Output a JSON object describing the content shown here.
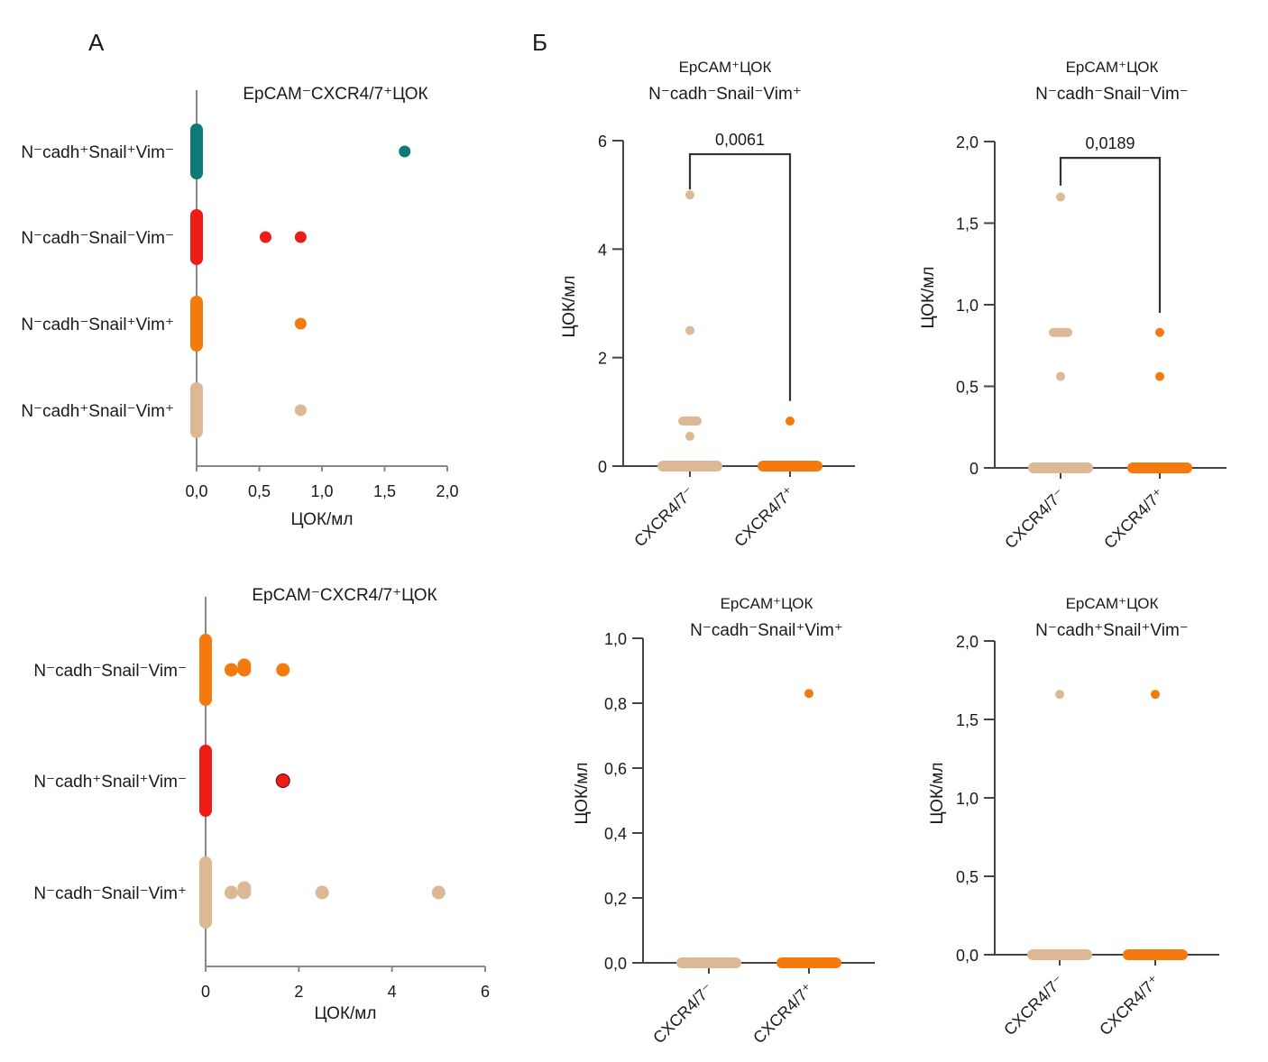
{
  "panel_letters": {
    "a": "А",
    "b": "Б"
  },
  "colors": {
    "teal": "#0e7a78",
    "red": "#ee1c16",
    "orange": "#f47a0e",
    "beige": "#dcb895",
    "axis": "#444444"
  },
  "chart_data": [
    {
      "id": "A-top",
      "type": "scatter",
      "orientation": "horizontal",
      "title": "EpCAM⁻CXCR4/7⁺ЦОК",
      "xlabel": "ЦОК/мл",
      "ylabel": "",
      "xlim": [
        0,
        2.0
      ],
      "xticks": [
        0,
        0.5,
        1.0,
        1.5,
        2.0
      ],
      "xtick_labels": [
        "0,0",
        "0,5",
        "1,0",
        "1,5",
        "2,0"
      ],
      "grid": false,
      "categories": [
        {
          "label": "N⁻cadh⁺Snail⁺Vim⁻",
          "color": "teal",
          "zero_cluster": true,
          "points": [
            1.66
          ]
        },
        {
          "label": "N⁻cadh⁻Snail⁻Vim⁻",
          "color": "red",
          "zero_cluster": true,
          "points": [
            0.55,
            0.83
          ]
        },
        {
          "label": "N⁻cadh⁻Snail⁺Vim⁺",
          "color": "orange",
          "zero_cluster": true,
          "points": [
            0.83
          ]
        },
        {
          "label": "N⁻cadh⁺Snail⁻Vim⁺",
          "color": "beige",
          "zero_cluster": true,
          "points": [
            0.83
          ]
        }
      ]
    },
    {
      "id": "A-bottom",
      "type": "scatter",
      "orientation": "horizontal",
      "title": "EpCAM⁻CXCR4/7⁺ЦОК",
      "xlabel": "ЦОК/мл",
      "ylabel": "",
      "xlim": [
        0,
        6
      ],
      "xticks": [
        0,
        2,
        4,
        6
      ],
      "xtick_labels": [
        "0",
        "2",
        "4",
        "6"
      ],
      "grid": false,
      "categories": [
        {
          "label": "N⁻cadh⁻Snail⁻Vim⁻",
          "color": "orange",
          "zero_cluster": true,
          "points": [
            0.55,
            0.83,
            0.83,
            1.66
          ]
        },
        {
          "label": "N⁻cadh⁺Snail⁺Vim⁻",
          "color": "red",
          "zero_cluster": true,
          "points": [
            1.66
          ]
        },
        {
          "label": "N⁻cadh⁻Snail⁻Vim⁺",
          "color": "beige",
          "zero_cluster": true,
          "points": [
            0.55,
            0.83,
            0.83,
            2.5,
            5.0
          ]
        }
      ]
    },
    {
      "id": "B-top-left",
      "type": "scatter",
      "orientation": "vertical",
      "title": [
        "EpCAM⁺ЦОК",
        "N⁻cadh⁻Snail⁻Vim⁺"
      ],
      "ylabel": "ЦОК/мл",
      "xlabel": "",
      "ylim": [
        0,
        6
      ],
      "yticks": [
        0,
        2,
        4,
        6
      ],
      "ytick_labels": [
        "0",
        "2",
        "4",
        "6"
      ],
      "grid": false,
      "categories": [
        {
          "label": "CXCR4/7⁻",
          "color": "beige",
          "zero_cluster": true,
          "points": [
            0.55,
            0.83,
            0.83,
            0.83,
            2.5,
            5.0
          ]
        },
        {
          "label": "CXCR4/7⁺",
          "color": "orange",
          "zero_cluster": true,
          "points": [
            0.83
          ]
        }
      ],
      "significance": {
        "label": "0,0061",
        "y_top": 5.75,
        "left_end": 5.1,
        "right_end": 1.2
      }
    },
    {
      "id": "B-top-right",
      "type": "scatter",
      "orientation": "vertical",
      "title": [
        "EpCAM⁺ЦОК",
        "N⁻cadh⁻Snail⁻Vim⁻"
      ],
      "ylabel": "ЦОК/мл",
      "xlabel": "",
      "ylim": [
        0,
        2.0
      ],
      "yticks": [
        0,
        0.5,
        1.0,
        1.5,
        2.0
      ],
      "ytick_labels": [
        "0",
        "0,5",
        "1,0",
        "1,5",
        "2,0"
      ],
      "grid": false,
      "categories": [
        {
          "label": "CXCR4/7⁻",
          "color": "beige",
          "zero_cluster": true,
          "points": [
            0.56,
            0.83,
            0.83,
            0.83,
            1.66
          ]
        },
        {
          "label": "CXCR4/7⁺",
          "color": "orange",
          "zero_cluster": true,
          "points": [
            0.56,
            0.83
          ]
        }
      ],
      "significance": {
        "label": "0,0189",
        "y_top": 1.9,
        "left_end": 1.73,
        "right_end": 0.95
      }
    },
    {
      "id": "B-bottom-left",
      "type": "scatter",
      "orientation": "vertical",
      "title": [
        "EpCAM⁺ЦОК",
        "N⁻cadh⁻Snail⁺Vim⁺"
      ],
      "ylabel": "ЦОК/мл",
      "xlabel": "",
      "ylim": [
        0,
        1.0
      ],
      "yticks": [
        0,
        0.2,
        0.4,
        0.6,
        0.8,
        1.0
      ],
      "ytick_labels": [
        "0,0",
        "0,2",
        "0,4",
        "0,6",
        "0,8",
        "1,0"
      ],
      "grid": false,
      "categories": [
        {
          "label": "CXCR4/7⁻",
          "color": "beige",
          "zero_cluster": true,
          "points": []
        },
        {
          "label": "CXCR4/7⁺",
          "color": "orange",
          "zero_cluster": true,
          "points": [
            0.83
          ]
        }
      ]
    },
    {
      "id": "B-bottom-right",
      "type": "scatter",
      "orientation": "vertical",
      "title": [
        "EpCAM⁺ЦОК",
        "N⁻cadh⁺Snail⁺Vim⁻"
      ],
      "ylabel": "ЦОК/мл",
      "xlabel": "",
      "ylim": [
        0,
        2.0
      ],
      "yticks": [
        0,
        0.5,
        1.0,
        1.5,
        2.0
      ],
      "ytick_labels": [
        "0,0",
        "0,5",
        "1,0",
        "1,5",
        "2,0"
      ],
      "grid": false,
      "categories": [
        {
          "label": "CXCR4/7⁻",
          "color": "beige",
          "zero_cluster": true,
          "points": [
            1.66
          ]
        },
        {
          "label": "CXCR4/7⁺",
          "color": "orange",
          "zero_cluster": true,
          "points": [
            1.66
          ]
        }
      ]
    }
  ]
}
